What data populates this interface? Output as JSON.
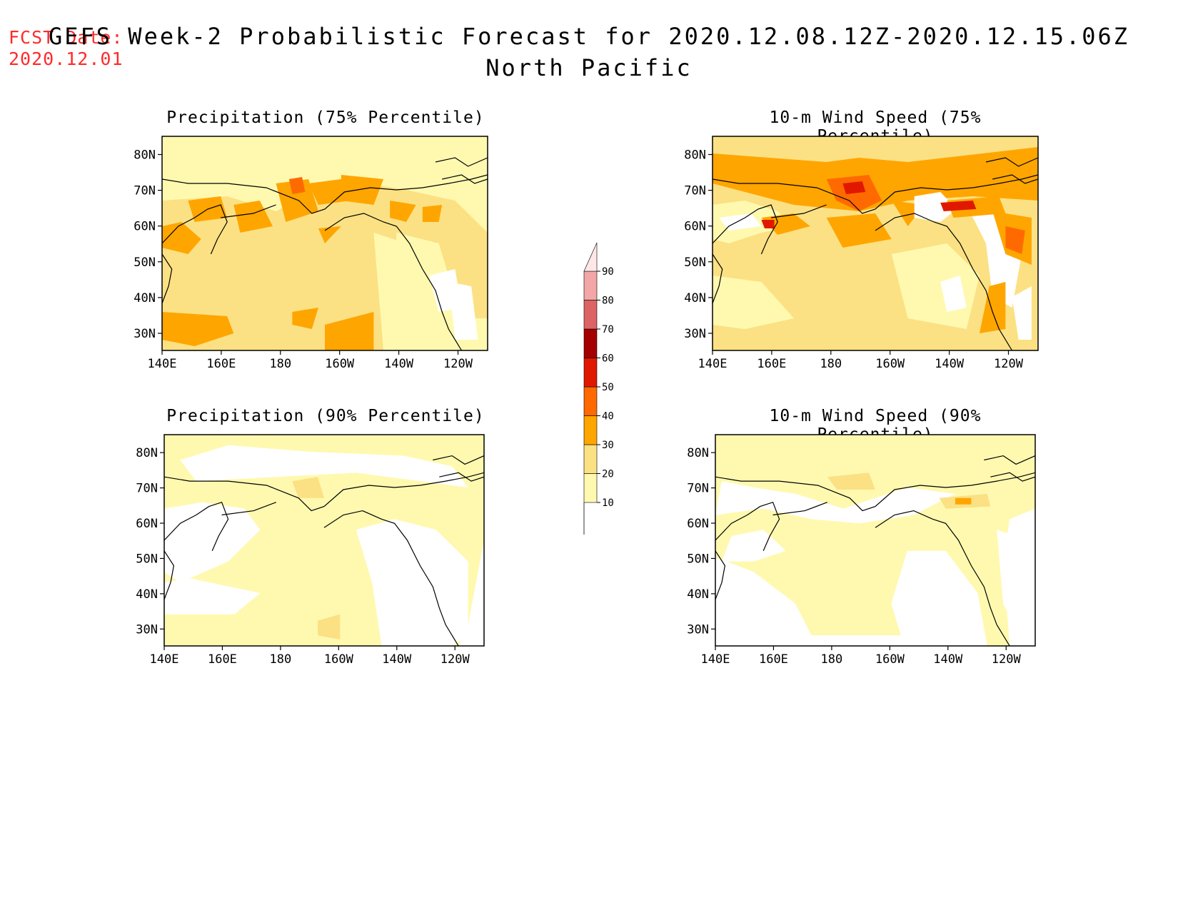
{
  "header": {
    "fcst_label": "FCST Date:",
    "fcst_date": "2020.12.01",
    "title": "GEFS Week-2 Probabilistic Forecast for 2020.12.08.12Z-2020.12.15.06Z",
    "subtitle": "North Pacific"
  },
  "panels": [
    {
      "title": "Precipitation (75% Percentile)"
    },
    {
      "title": "10-m Wind Speed (75% Percentile)"
    },
    {
      "title": "Precipitation (90% Percentile)"
    },
    {
      "title": "10-m Wind Speed (90% Percentile)"
    }
  ],
  "axes": {
    "lat_ticks": [
      "80N",
      "70N",
      "60N",
      "50N",
      "40N",
      "30N"
    ],
    "lon_ticks": [
      "140E",
      "160E",
      "180",
      "160W",
      "140W",
      "120W"
    ]
  },
  "colorbar": {
    "levels": [
      "10",
      "20",
      "30",
      "40",
      "50",
      "60",
      "70",
      "80",
      "90"
    ],
    "colors": [
      "#fff9b0",
      "#fbe183",
      "#ffa500",
      "#ff6a00",
      "#e11800",
      "#a50000",
      "#dc6464",
      "#f3a6a6",
      "#ffe7e7"
    ]
  },
  "fills": {
    "white": "#ffffff",
    "light_yellow": "#fff9b0",
    "yellow": "#fbe183",
    "orange": "#ffa500",
    "dark_orange": "#ff6a00",
    "red": "#e11800"
  }
}
